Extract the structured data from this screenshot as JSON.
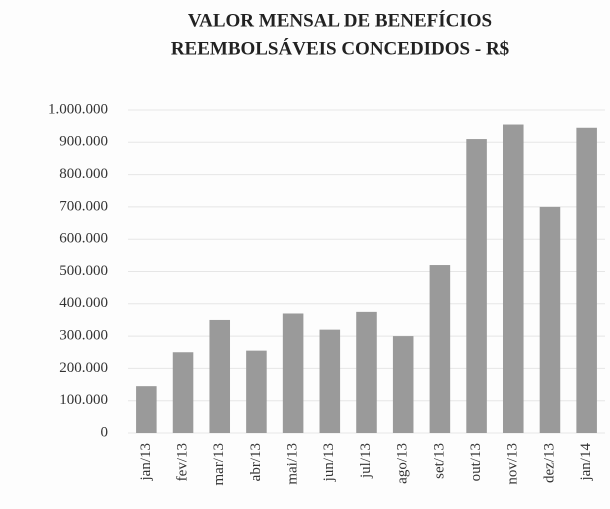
{
  "chart_data": {
    "type": "bar",
    "title": [
      "VALOR MENSAL DE BENEFÍCIOS",
      "REEMBOLSÁVEIS CONCEDIDOS - R$"
    ],
    "categories": [
      "jan/13",
      "fev/13",
      "mar/13",
      "abr/13",
      "mai/13",
      "jun/13",
      "jul/13",
      "ago/13",
      "set/13",
      "out/13",
      "nov/13",
      "dez/13",
      "jan/14"
    ],
    "values": [
      145000,
      250000,
      350000,
      255000,
      370000,
      320000,
      375000,
      300000,
      520000,
      910000,
      955000,
      700000,
      945000
    ],
    "color": "#9a9a9a",
    "ylim": [
      0,
      1000000
    ],
    "yticks": [
      0,
      {
        "value": 100000,
        "label": "100.000"
      },
      {
        "value": 200000,
        "label": "200.000"
      },
      {
        "value": 300000,
        "label": "300.000"
      },
      {
        "value": 400000,
        "label": "400.000"
      },
      {
        "value": 500000,
        "label": "500.000"
      },
      {
        "value": 600000,
        "label": "600.000"
      },
      {
        "value": 700000,
        "label": "700.000"
      },
      {
        "value": 800000,
        "label": "800.000"
      },
      {
        "value": 900000,
        "label": "900.000"
      },
      {
        "value": 1000000,
        "label": "1.000.000"
      }
    ],
    "grid": true
  }
}
